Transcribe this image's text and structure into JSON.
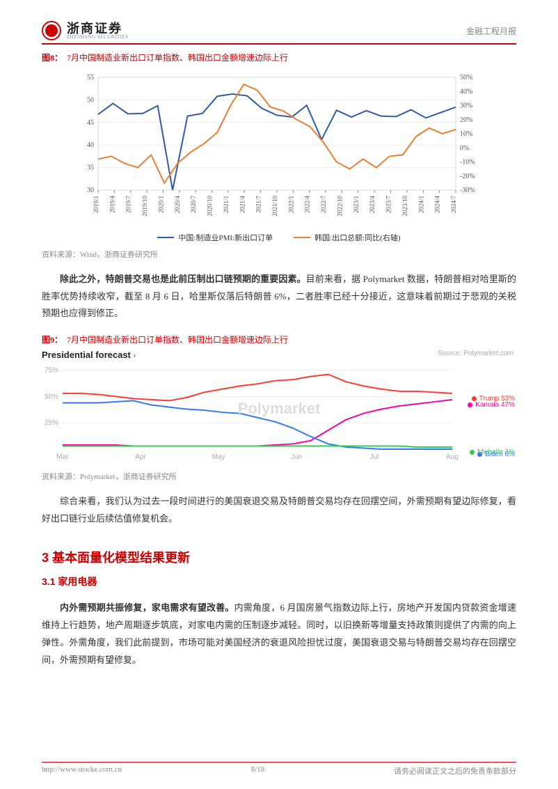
{
  "header": {
    "brand_cn": "浙商证券",
    "brand_en": "ZHESHANG SECURITIES",
    "report_type": "金融工程月报"
  },
  "fig8": {
    "label": "图8：",
    "title": "7月中国制造业新出口订单指数、韩国出口金额增速边际上行",
    "type": "dual-axis-line",
    "x_labels": [
      "2019/1",
      "2019/4",
      "2019/7",
      "2019/10",
      "2020/1",
      "2020/4",
      "2020/7",
      "2020/10",
      "2021/1",
      "2021/4",
      "2021/7",
      "2021/10",
      "2022/1",
      "2022/4",
      "2022/7",
      "2022/10",
      "2023/1",
      "2023/4",
      "2023/7",
      "2023/10",
      "2024/1",
      "2024/4",
      "2024/7"
    ],
    "left_axis": {
      "label": "",
      "min": 30,
      "max": 55,
      "ticks": [
        30,
        35,
        40,
        45,
        50,
        55
      ]
    },
    "right_axis": {
      "label": "",
      "min": -30,
      "max": 50,
      "ticks_pct": [
        "-30%",
        "-20%",
        "-10%",
        "0%",
        "10%",
        "20%",
        "30%",
        "40%",
        "50%"
      ]
    },
    "series": [
      {
        "name": "中国:制造业PMI:新出口订单",
        "color": "#2e5aa8",
        "axis": "left",
        "values": [
          46.8,
          49.2,
          46.9,
          47.0,
          48.7,
          30.0,
          46.4,
          47.0,
          50.8,
          51.3,
          50.9,
          48.1,
          46.6,
          46.2,
          48.8,
          41.2,
          47.7,
          46.2,
          47.6,
          46.4,
          46.3,
          47.8,
          46.0,
          47.2,
          48.4
        ]
      },
      {
        "name": "韩国:出口总额:同比(右轴)",
        "color": "#ed7d31",
        "axis": "right",
        "values": [
          -8,
          -6,
          -11,
          -14,
          -5,
          -25,
          -11,
          -3,
          3,
          11,
          30,
          45,
          41,
          29,
          26,
          20,
          15,
          4,
          -10,
          -15,
          -8,
          -14,
          -6,
          -5,
          8,
          14,
          10,
          13
        ]
      }
    ],
    "source": "资料来源：Wind，浙商证券研究所",
    "background_color": "#ffffff",
    "grid_color": "#d9d9d9",
    "tick_fontsize": 10,
    "line_width": 2
  },
  "para1": {
    "bold_lead": "除此之外，特朗普交易也是此前压制出口链预期的重要因素。",
    "rest": "目前来看，据 Polymarket 数据，特朗普相对哈里斯的胜率优势持续收窄，截至 8 月 6 日，哈里斯仅落后特朗普 6%，二者胜率已经十分接近，这意味着前期过于悲观的关税预期也应得到修正。"
  },
  "fig9": {
    "label": "图9：",
    "title": "7月中国制造业新出口订单指数、韩国出口金额增速边际上行",
    "type": "line",
    "forecast_title": "Presidential forecast",
    "source_tag": "Source: Polymarket.com",
    "watermark": "Polymarket",
    "x_labels": [
      "Mar",
      "Apr",
      "May",
      "Jun",
      "Jul",
      "Aug"
    ],
    "y_ticks": [
      "25%",
      "50%",
      "75%"
    ],
    "y_min": 0,
    "y_max": 80,
    "series": [
      {
        "name": "Trump",
        "label": "Trump 53%",
        "color": "#ff3b30",
        "values": [
          53,
          53,
          52,
          50,
          48,
          47,
          46,
          49,
          54,
          57,
          60,
          62,
          65,
          66,
          69,
          71,
          64,
          60,
          57,
          55,
          55,
          54,
          53
        ]
      },
      {
        "name": "Kamala",
        "label": "Kamala 47%",
        "color": "#ff00aa",
        "values": [
          4,
          4,
          4,
          4,
          3,
          3,
          3,
          3,
          3,
          3,
          3,
          3,
          4,
          5,
          8,
          18,
          28,
          34,
          38,
          41,
          43,
          45,
          47
        ]
      },
      {
        "name": "Biden",
        "label": "Biden 0%",
        "color": "#3478f6",
        "values": [
          44,
          44,
          44,
          45,
          46,
          42,
          40,
          38,
          37,
          35,
          34,
          30,
          26,
          20,
          12,
          5,
          2,
          1,
          0,
          0,
          0,
          0,
          0
        ]
      },
      {
        "name": "Michelle",
        "label": "Michelle 2%",
        "color": "#34c759",
        "values": [
          3,
          3,
          3,
          3,
          3,
          3,
          3,
          3,
          3,
          3,
          3,
          3,
          3,
          3,
          3,
          3,
          3,
          3,
          3,
          3,
          2,
          2,
          2
        ]
      }
    ],
    "grid_color": "#eeeeee",
    "line_width": 2,
    "tick_fontsize": 10,
    "source": "资料来源：Polymarket，浙商证券研究所"
  },
  "para2": "综合来看，我们认为过去一段时间进行的美国衰退交易及特朗普交易均存在回摆空间，外需预期有望边际修复，看好出口链行业后续估值修复机会。",
  "section3": {
    "heading": "3 基本面量化模型结果更新",
    "sub1": {
      "heading": "3.1 家用电器",
      "bold_lead": "内外需预期共振修复，家电需求有望改善。",
      "rest": "内需角度，6 月国房景气指数边际上行，房地产开发国内贷款资金增速维持上行趋势，地产周期逐步筑底，对家电内需的压制逐步减轻。同时，以旧换新等增量支持政策则提供了内需的向上弹性。外需角度，我们此前提到，市场可能对美国经济的衰退风险担忧过度，美国衰退交易与特朗普交易均存在回摆空间，外需预期有望修复。"
    }
  },
  "footer": {
    "url": "http://www.stocke.com.cn",
    "page": "8/18",
    "disclaimer": "请务必阅读正文之后的免责条款部分"
  },
  "colors": {
    "brand_red": "#c00000"
  }
}
